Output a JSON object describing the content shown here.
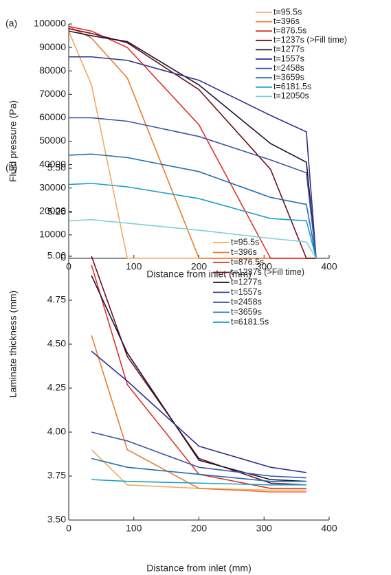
{
  "chart_data": [
    {
      "type": "line",
      "panel_label": "(a)",
      "x_label": "Distance from inlet (mm)",
      "y_label": "Fluid pressure (Pa)",
      "x": [
        0,
        35,
        90,
        200,
        310,
        365,
        380
      ],
      "xlim": [
        0,
        400
      ],
      "xticks": [
        0,
        100,
        200,
        300,
        400
      ],
      "ylim": [
        0,
        100000
      ],
      "yticks": [
        0,
        10000,
        20000,
        30000,
        40000,
        50000,
        60000,
        70000,
        80000,
        90000,
        100000
      ],
      "legend": "top-right",
      "series": [
        {
          "name": "t=95.5s",
          "color": "#f5a85c",
          "values": [
            97000,
            74000,
            0,
            0,
            0,
            0,
            0
          ]
        },
        {
          "name": "t=396s",
          "color": "#ec7a30",
          "values": [
            99000,
            94000,
            77000,
            0,
            0,
            0,
            0
          ]
        },
        {
          "name": "t=876.5s",
          "color": "#e0302a",
          "values": [
            99000,
            97000,
            90000,
            57000,
            0,
            0,
            0
          ]
        },
        {
          "name": "t=1237s (>Fill time)",
          "color": "#6b0f1a",
          "values": [
            98000,
            96000,
            92000,
            72000,
            38000,
            0,
            0
          ]
        },
        {
          "name": "t=1277s",
          "color": "#1e1030",
          "values": [
            97000,
            95000,
            92500,
            74000,
            49000,
            41000,
            0
          ]
        },
        {
          "name": "t=1557s",
          "color": "#2e3190",
          "values": [
            86000,
            86000,
            84500,
            76000,
            61000,
            54000,
            0
          ]
        },
        {
          "name": "t=2458s",
          "color": "#3a56a4",
          "values": [
            60000,
            60000,
            58500,
            52000,
            42000,
            36500,
            0
          ]
        },
        {
          "name": "t=3659s",
          "color": "#1f6fb0",
          "values": [
            44000,
            44500,
            43000,
            37000,
            26000,
            23000,
            0
          ]
        },
        {
          "name": "t=6181.5s",
          "color": "#1aa0c8",
          "values": [
            31500,
            32000,
            30500,
            25500,
            17000,
            16000,
            0
          ]
        },
        {
          "name": "t=12050s",
          "color": "#7fcfd8",
          "values": [
            16000,
            16500,
            15000,
            12000,
            8500,
            7000,
            0
          ]
        }
      ]
    },
    {
      "type": "line",
      "panel_label": "(b)",
      "x_label": "Distance from inlet (mm)",
      "y_label": "Laminate thickness (mm)",
      "x": [
        35,
        90,
        200,
        310,
        365
      ],
      "xlim": [
        0,
        400
      ],
      "xticks": [
        0,
        100,
        200,
        300,
        400
      ],
      "ylim": [
        3.5,
        5.5
      ],
      "yticks": [
        {
          "value": 3.5,
          "label": "3.50"
        },
        3.75,
        {
          "value": 4,
          "label": "4.00"
        },
        4.25,
        {
          "value": 4.5,
          "label": "4.50"
        },
        4.75,
        {
          "value": 5,
          "label": "5.00"
        },
        5.25,
        {
          "value": 5.5,
          "label": "5.50"
        }
      ],
      "legend": "center-right",
      "series": [
        {
          "name": "t=95.5s",
          "color": "#f5a85c",
          "values": [
            3.9,
            3.7,
            3.68,
            3.67,
            3.67
          ]
        },
        {
          "name": "t=396s",
          "color": "#ec7a30",
          "values": [
            4.55,
            3.9,
            3.68,
            3.66,
            3.66
          ]
        },
        {
          "name": "t=876.5s",
          "color": "#e0302a",
          "values": [
            4.95,
            4.27,
            3.76,
            3.68,
            3.68
          ]
        },
        {
          "name": "t=1237s (>Fill time)",
          "color": "#6b0f1a",
          "values": [
            5.0,
            4.43,
            3.85,
            3.71,
            3.7
          ]
        },
        {
          "name": "t=1277s",
          "color": "#1e1030",
          "values": [
            4.89,
            4.45,
            3.84,
            3.73,
            3.72
          ]
        },
        {
          "name": "t=1557s",
          "color": "#2e3190",
          "values": [
            4.46,
            4.29,
            3.92,
            3.8,
            3.77
          ]
        },
        {
          "name": "t=2458s",
          "color": "#3a56a4",
          "values": [
            4.0,
            3.95,
            3.8,
            3.75,
            3.74
          ]
        },
        {
          "name": "t=3659s",
          "color": "#1f6fb0",
          "values": [
            3.85,
            3.8,
            3.76,
            3.72,
            3.72
          ]
        },
        {
          "name": "t=6181.5s",
          "color": "#1aa0c8",
          "values": [
            3.73,
            3.72,
            3.71,
            3.7,
            3.7
          ]
        }
      ]
    }
  ]
}
